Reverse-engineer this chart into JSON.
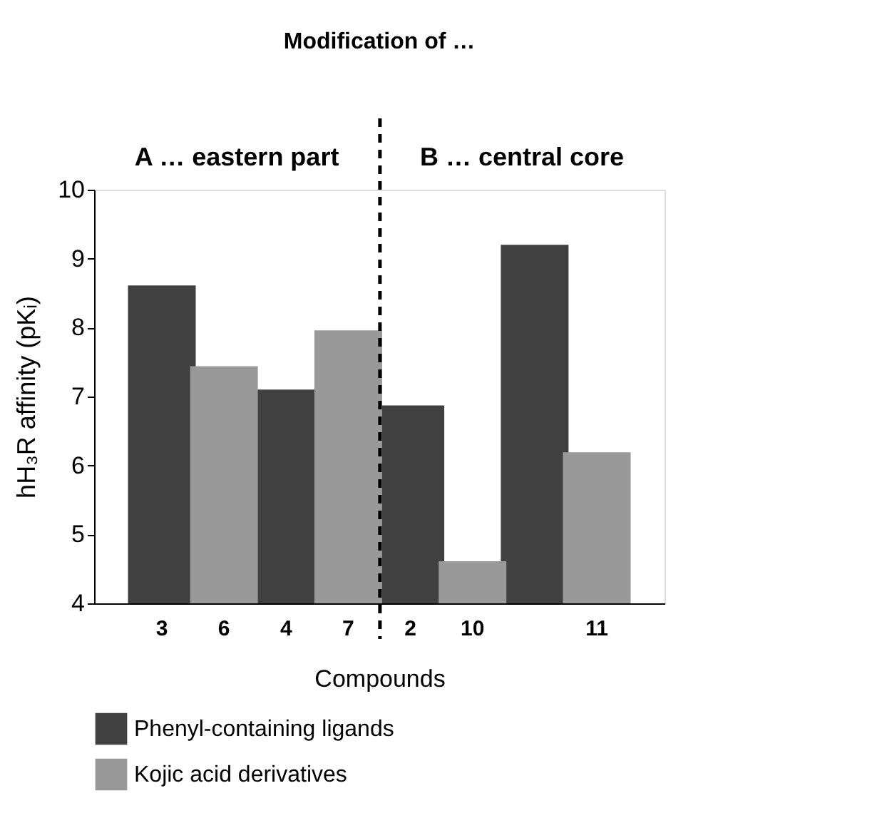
{
  "chart_data": {
    "type": "bar",
    "title": "Modification of …",
    "xlabel": "Compounds",
    "ylabel": "hH₃R affinity (pKᵢ)",
    "categories": [
      "3",
      "6",
      "4",
      "7",
      "2",
      "10",
      null,
      "11"
    ],
    "series": [
      {
        "name": "Phenyl-containing ligands",
        "color": "#404040",
        "values": [
          8.61,
          null,
          7.1,
          null,
          6.87,
          null,
          9.2,
          null
        ]
      },
      {
        "name": "Kojic acid derivatives",
        "color": "#999999",
        "values": [
          null,
          7.44,
          null,
          7.96,
          null,
          4.61,
          null,
          6.19
        ]
      }
    ],
    "ylim": [
      4,
      10
    ],
    "yticks": [
      4,
      5,
      6,
      7,
      8,
      9,
      10
    ],
    "grid": false,
    "legend": "bottom",
    "annotations": [
      "A … eastern part",
      "B … central core"
    ]
  }
}
